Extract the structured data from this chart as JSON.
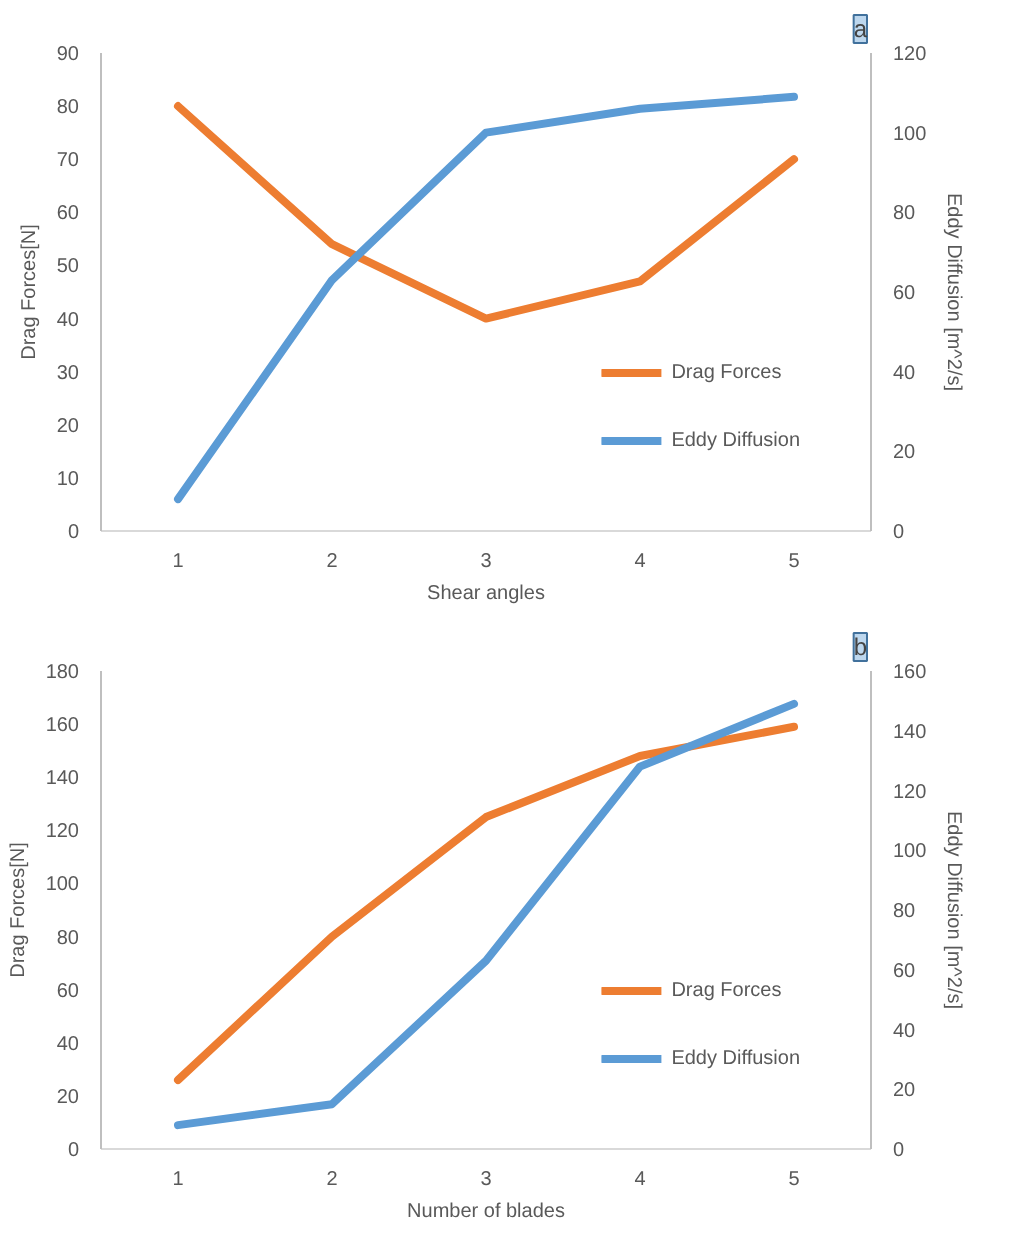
{
  "chart_data": [
    {
      "type": "line",
      "xlabel": "Shear angles",
      "ylabel": "Drag Forces[N]",
      "y2label": "Eddy Diffusion [m^2/s]",
      "x": [
        1,
        2,
        3,
        4,
        5
      ],
      "xlim": [
        0.5,
        5.5
      ],
      "xticks": [
        1,
        2,
        3,
        4,
        5
      ],
      "ylim": [
        0,
        90
      ],
      "yticks": [
        0,
        10,
        20,
        30,
        40,
        50,
        60,
        70,
        80,
        90
      ],
      "y2lim": [
        0,
        120
      ],
      "y2ticks": [
        0,
        20,
        40,
        60,
        80,
        100,
        120
      ],
      "grid": false,
      "legend": "bottom right",
      "annotations": [
        "a"
      ],
      "series": [
        {
          "name": "Drag Forces",
          "color": "#ed7d31",
          "values": [
            80,
            54,
            40,
            47,
            70
          ]
        },
        {
          "name": "Eddy Diffusion",
          "color": "#5b9bd5",
          "axis": "y2",
          "values": [
            8,
            63,
            100,
            106,
            109
          ]
        }
      ]
    },
    {
      "type": "line",
      "xlabel": "Number of blades",
      "ylabel": "Drag Forces[N]",
      "y2label": "Eddy Diffusion [m^2/s]",
      "x": [
        1,
        2,
        3,
        4,
        5
      ],
      "xlim": [
        0.5,
        5.5
      ],
      "xticks": [
        1,
        2,
        3,
        4,
        5
      ],
      "ylim": [
        0,
        180
      ],
      "yticks": [
        0,
        20,
        40,
        60,
        80,
        100,
        120,
        140,
        160,
        180
      ],
      "y2lim": [
        0,
        160
      ],
      "y2ticks": [
        0,
        20,
        40,
        60,
        80,
        100,
        120,
        140,
        160
      ],
      "grid": false,
      "legend": "bottom right",
      "annotations": [
        "b"
      ],
      "series": [
        {
          "name": "Drag Forces",
          "color": "#ed7d31",
          "values": [
            26,
            80,
            125,
            148,
            159
          ]
        },
        {
          "name": "Eddy Diffusion",
          "color": "#5b9bd5",
          "axis": "y2",
          "values": [
            8,
            15,
            63,
            128,
            149
          ]
        }
      ]
    }
  ]
}
